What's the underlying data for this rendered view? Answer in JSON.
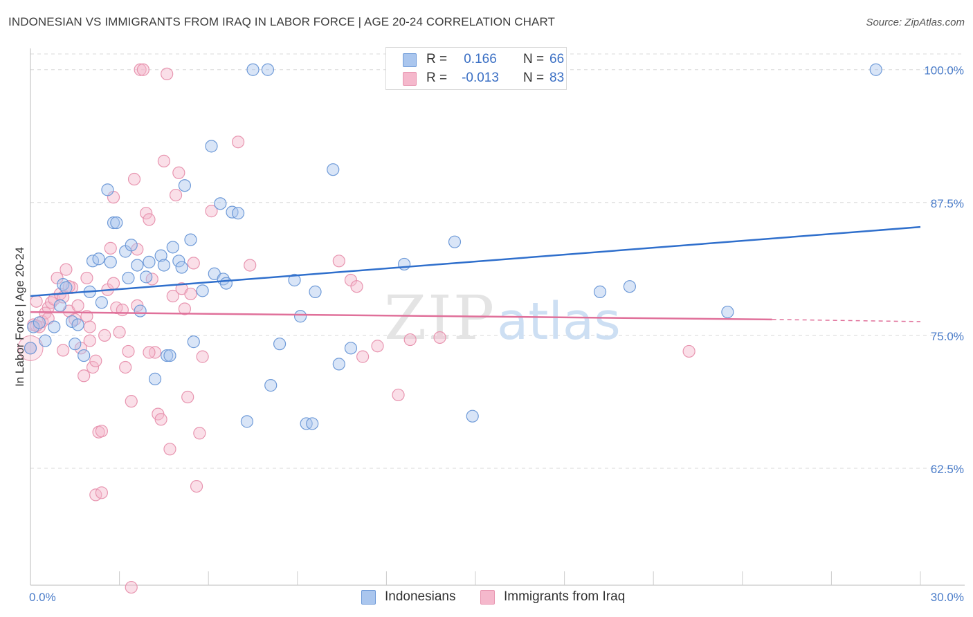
{
  "title": "INDONESIAN VS IMMIGRANTS FROM IRAQ IN LABOR FORCE | AGE 20-24 CORRELATION CHART",
  "source": "Source: ZipAtlas.com",
  "colors": {
    "blue_fill": "#aac6ee",
    "blue_stroke": "#6e9ad8",
    "blue_line": "#2f6fcc",
    "pink_fill": "#f5b8cc",
    "pink_stroke": "#e895b0",
    "pink_line": "#e0709a",
    "axis_text": "#4a7cc9",
    "grid": "#d8d8d8",
    "watermark": "#e4e4e4",
    "watermark_atlas": "#cddff3"
  },
  "legend": {
    "rows": [
      {
        "series": "Indonesians",
        "r_label": "R =",
        "r_value": "0.166",
        "n_label": "N =",
        "n_value": "66"
      },
      {
        "series": "Immigrants from Iraq",
        "r_label": "R =",
        "r_value": "-0.013",
        "n_label": "N =",
        "n_value": "83"
      }
    ]
  },
  "watermark": {
    "zip": "ZIP",
    "atlas": "atlas"
  },
  "chart_data": {
    "type": "scatter",
    "title": "INDONESIAN VS IMMIGRANTS FROM IRAQ IN LABOR FORCE | AGE 20-24 CORRELATION CHART",
    "xlabel": "",
    "ylabel": "In Labor Force | Age 20-24",
    "xlim": [
      0,
      30
    ],
    "ylim": [
      51.5,
      102
    ],
    "x_tick_labels": [
      {
        "value": 0,
        "label": "0.0%"
      },
      {
        "value": 30,
        "label": "30.0%"
      }
    ],
    "y_tick_labels": [
      {
        "value": 100,
        "label": "100.0%"
      },
      {
        "value": 87.5,
        "label": "87.5%"
      },
      {
        "value": 75,
        "label": "75.0%"
      },
      {
        "value": 62.5,
        "label": "62.5%"
      }
    ],
    "grid": true,
    "legend_position": "top-center and bottom",
    "series": [
      {
        "name": "Indonesians",
        "color": "#aac6ee",
        "trend": {
          "x": [
            0,
            30
          ],
          "y": [
            78.7,
            85.2
          ]
        },
        "points": [
          [
            0.0,
            73.8
          ],
          [
            0.1,
            75.8
          ],
          [
            0.3,
            76.2
          ],
          [
            0.5,
            74.5
          ],
          [
            0.8,
            75.8
          ],
          [
            1.0,
            77.8
          ],
          [
            1.1,
            79.8
          ],
          [
            1.2,
            79.5
          ],
          [
            1.4,
            76.3
          ],
          [
            1.5,
            74.2
          ],
          [
            1.6,
            76.0
          ],
          [
            1.8,
            73.1
          ],
          [
            2.0,
            79.1
          ],
          [
            2.1,
            82.0
          ],
          [
            2.3,
            82.2
          ],
          [
            2.4,
            78.1
          ],
          [
            2.6,
            88.7
          ],
          [
            2.7,
            81.9
          ],
          [
            2.8,
            85.6
          ],
          [
            2.9,
            85.6
          ],
          [
            3.2,
            82.9
          ],
          [
            3.3,
            80.4
          ],
          [
            3.4,
            83.5
          ],
          [
            3.6,
            81.6
          ],
          [
            3.7,
            77.3
          ],
          [
            3.9,
            80.5
          ],
          [
            4.0,
            81.9
          ],
          [
            4.2,
            70.9
          ],
          [
            4.4,
            82.5
          ],
          [
            4.5,
            81.6
          ],
          [
            4.6,
            73.1
          ],
          [
            4.7,
            73.1
          ],
          [
            4.8,
            83.3
          ],
          [
            5.0,
            82.0
          ],
          [
            5.1,
            81.4
          ],
          [
            5.2,
            89.1
          ],
          [
            5.4,
            84.0
          ],
          [
            5.5,
            74.4
          ],
          [
            5.8,
            79.2
          ],
          [
            6.1,
            92.8
          ],
          [
            6.2,
            80.8
          ],
          [
            6.4,
            87.4
          ],
          [
            6.5,
            80.3
          ],
          [
            6.6,
            79.9
          ],
          [
            6.8,
            86.6
          ],
          [
            7.0,
            86.5
          ],
          [
            7.3,
            66.9
          ],
          [
            7.5,
            100.0
          ],
          [
            8.0,
            100.0
          ],
          [
            8.1,
            70.3
          ],
          [
            8.4,
            74.2
          ],
          [
            8.9,
            80.2
          ],
          [
            9.1,
            76.8
          ],
          [
            9.3,
            66.7
          ],
          [
            9.5,
            66.7
          ],
          [
            9.6,
            79.1
          ],
          [
            10.2,
            90.6
          ],
          [
            10.4,
            72.3
          ],
          [
            10.8,
            73.8
          ],
          [
            12.6,
            81.7
          ],
          [
            14.3,
            83.8
          ],
          [
            14.9,
            67.4
          ],
          [
            19.2,
            79.1
          ],
          [
            20.2,
            79.6
          ],
          [
            23.5,
            77.2
          ],
          [
            28.5,
            100.0
          ]
        ]
      },
      {
        "name": "Immigrants from Iraq",
        "color": "#f5b8cc",
        "trend": {
          "x": [
            0,
            25
          ],
          "y": [
            77.2,
            76.5
          ]
        },
        "trend_dashed": {
          "x": [
            25,
            30
          ],
          "y": [
            76.5,
            76.3
          ]
        },
        "points": [
          [
            0.0,
            73.8
          ],
          [
            0.1,
            76.0
          ],
          [
            0.2,
            78.2
          ],
          [
            0.3,
            75.8
          ],
          [
            0.4,
            76.3
          ],
          [
            0.5,
            77.1
          ],
          [
            0.6,
            77.6
          ],
          [
            0.7,
            78.1
          ],
          [
            0.8,
            78.4
          ],
          [
            0.9,
            80.4
          ],
          [
            1.0,
            78.9
          ],
          [
            1.1,
            78.6
          ],
          [
            1.2,
            81.2
          ],
          [
            1.3,
            77.3
          ],
          [
            1.4,
            79.5
          ],
          [
            1.5,
            76.5
          ],
          [
            1.6,
            77.8
          ],
          [
            1.7,
            73.8
          ],
          [
            1.8,
            71.2
          ],
          [
            1.9,
            80.4
          ],
          [
            1.9,
            76.8
          ],
          [
            2.0,
            75.8
          ],
          [
            2.1,
            72.0
          ],
          [
            2.2,
            72.6
          ],
          [
            2.3,
            65.9
          ],
          [
            2.4,
            66.0
          ],
          [
            2.5,
            75.0
          ],
          [
            2.6,
            79.3
          ],
          [
            2.7,
            83.2
          ],
          [
            2.8,
            88.0
          ],
          [
            2.9,
            77.6
          ],
          [
            3.0,
            75.3
          ],
          [
            3.1,
            77.4
          ],
          [
            3.2,
            72.0
          ],
          [
            3.3,
            73.5
          ],
          [
            3.4,
            68.8
          ],
          [
            3.5,
            89.7
          ],
          [
            3.6,
            83.1
          ],
          [
            3.7,
            100.0
          ],
          [
            3.8,
            100.0
          ],
          [
            3.9,
            86.5
          ],
          [
            4.0,
            85.9
          ],
          [
            4.1,
            80.3
          ],
          [
            4.2,
            73.4
          ],
          [
            4.3,
            67.6
          ],
          [
            4.4,
            67.1
          ],
          [
            4.5,
            91.4
          ],
          [
            4.6,
            99.6
          ],
          [
            4.7,
            64.3
          ],
          [
            4.8,
            78.7
          ],
          [
            4.9,
            88.2
          ],
          [
            5.0,
            90.3
          ],
          [
            5.1,
            79.4
          ],
          [
            5.2,
            77.5
          ],
          [
            5.3,
            69.2
          ],
          [
            5.4,
            78.9
          ],
          [
            5.5,
            81.8
          ],
          [
            5.6,
            60.8
          ],
          [
            5.7,
            65.8
          ],
          [
            5.8,
            73.0
          ],
          [
            6.1,
            86.7
          ],
          [
            2.2,
            60.0
          ],
          [
            2.4,
            60.2
          ],
          [
            3.4,
            51.3
          ],
          [
            7.0,
            93.2
          ],
          [
            7.4,
            81.6
          ],
          [
            10.4,
            82.0
          ],
          [
            10.8,
            80.2
          ],
          [
            11.0,
            79.6
          ],
          [
            11.2,
            73.0
          ],
          [
            11.7,
            74.0
          ],
          [
            12.4,
            69.4
          ],
          [
            12.8,
            74.6
          ],
          [
            13.8,
            74.8
          ],
          [
            22.2,
            73.5
          ],
          [
            1.3,
            79.6
          ],
          [
            2.0,
            74.5
          ],
          [
            2.8,
            79.9
          ],
          [
            3.6,
            77.8
          ],
          [
            4.0,
            73.4
          ],
          [
            0.2,
            75.9
          ],
          [
            0.6,
            76.6
          ],
          [
            1.1,
            73.6
          ]
        ]
      }
    ]
  }
}
